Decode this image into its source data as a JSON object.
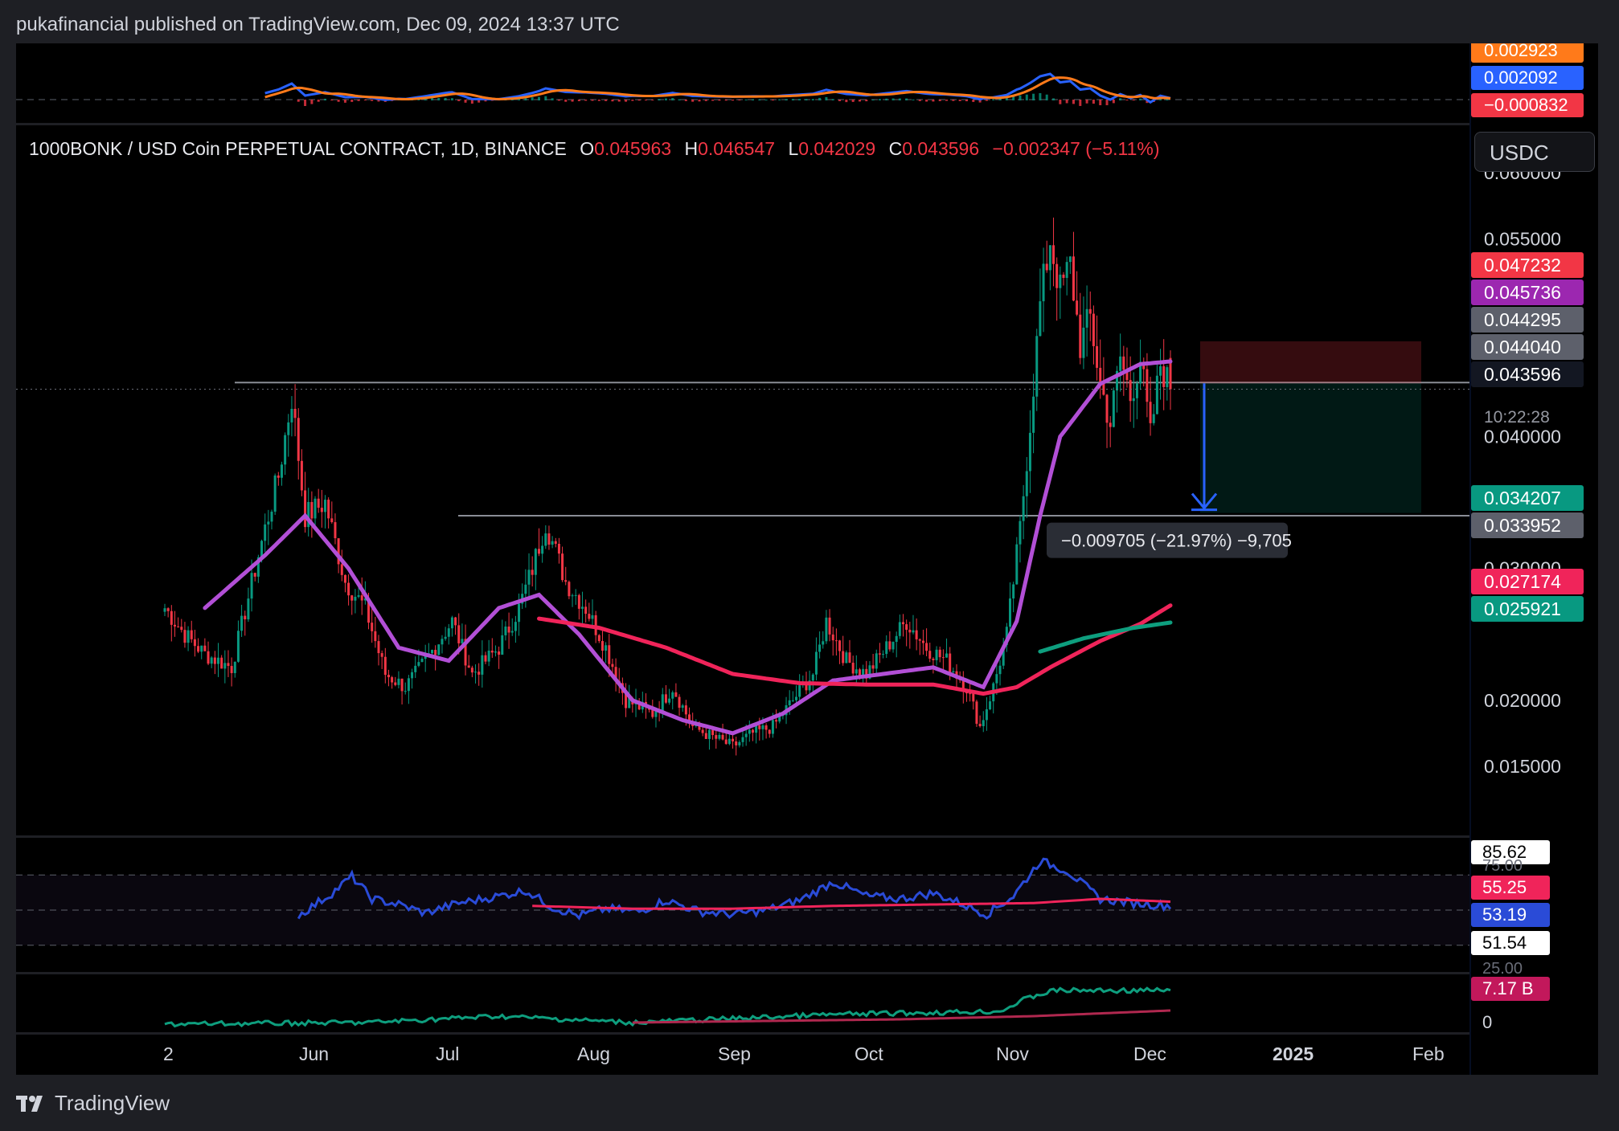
{
  "header": {
    "published": "pukafinancial published on TradingView.com, Dec 09, 2024 13:37 UTC"
  },
  "footer": {
    "brand": "TradingView"
  },
  "unit_selector": "USDC",
  "legend": {
    "symbol": "1000BONK / USD Coin PERPETUAL CONTRACT, 1D, BINANCE",
    "o_label": "O",
    "o": "0.045963",
    "h_label": "H",
    "h": "0.046547",
    "l_label": "L",
    "l": "0.042029",
    "c_label": "C",
    "c": "0.043596",
    "change": "−0.002347 (−5.11%)"
  },
  "measure_label": "−0.009705 (−21.97%) −9,705",
  "countdown": "10:22:28",
  "colors": {
    "up": "#089981",
    "down": "#f23645",
    "ma_purple": "#b24fd6",
    "ma_red": "#f0245a",
    "ma_green": "#0e9e7e",
    "macd_blue": "#2962ff",
    "signal_orange": "#ff7a1a",
    "rsi_blue": "#2a4bd7"
  },
  "chart_data": [
    {
      "type": "line",
      "title": "MACD",
      "series_values": {
        "signal": "0.002923",
        "macd": "0.002092",
        "histogram": "−0.000832"
      }
    },
    {
      "type": "candlestick",
      "title": "1000BONK / USD Coin PERPETUAL CONTRACT, 1D, BINANCE",
      "x_ticks": [
        "2",
        "Jun",
        "Jul",
        "Aug",
        "Sep",
        "Oct",
        "Nov",
        "Dec",
        "2025",
        "Feb"
      ],
      "y_ticks": [
        "0.060000",
        "0.055000",
        "0.040000",
        "0.030000",
        "0.020000",
        "0.015000"
      ],
      "ylim": [
        0.01,
        0.063
      ],
      "price_labels": [
        {
          "value": "0.047232",
          "color": "#f23645"
        },
        {
          "value": "0.045736",
          "color": "#9c27b0"
        },
        {
          "value": "0.044295",
          "color": "#5d606b"
        },
        {
          "value": "0.044040",
          "color": "#5d606b"
        },
        {
          "value": "0.043596",
          "color": "#131722"
        },
        {
          "value": "0.034207",
          "color": "#089981"
        },
        {
          "value": "0.033952",
          "color": "#5d606b"
        },
        {
          "value": "0.027174",
          "color": "#f0245a"
        },
        {
          "value": "0.025921",
          "color": "#089981"
        }
      ],
      "horizontal_levels": [
        0.0441,
        0.034
      ],
      "short_position": {
        "entry": 0.04404,
        "stop": 0.04723,
        "target": 0.03421
      },
      "ohlc_last": {
        "open": 0.045963,
        "high": 0.046547,
        "low": 0.042029,
        "close": 0.043596
      },
      "close_anchors": [
        [
          0,
          0.027
        ],
        [
          6,
          0.025
        ],
        [
          12,
          0.0235
        ],
        [
          20,
          0.0225
        ],
        [
          28,
          0.031
        ],
        [
          34,
          0.037
        ],
        [
          38,
          0.043
        ],
        [
          42,
          0.034
        ],
        [
          48,
          0.035
        ],
        [
          54,
          0.029
        ],
        [
          60,
          0.027
        ],
        [
          66,
          0.022
        ],
        [
          72,
          0.021
        ],
        [
          78,
          0.023
        ],
        [
          86,
          0.026
        ],
        [
          92,
          0.022
        ],
        [
          100,
          0.024
        ],
        [
          106,
          0.027
        ],
        [
          110,
          0.03
        ],
        [
          114,
          0.0335
        ],
        [
          120,
          0.029
        ],
        [
          126,
          0.027
        ],
        [
          132,
          0.024
        ],
        [
          138,
          0.02
        ],
        [
          146,
          0.019
        ],
        [
          152,
          0.021
        ],
        [
          158,
          0.018
        ],
        [
          164,
          0.0172
        ],
        [
          170,
          0.0165
        ],
        [
          176,
          0.0175
        ],
        [
          182,
          0.018
        ],
        [
          188,
          0.02
        ],
        [
          194,
          0.022
        ],
        [
          198,
          0.026
        ],
        [
          204,
          0.023
        ],
        [
          210,
          0.022
        ],
        [
          216,
          0.024
        ],
        [
          222,
          0.026
        ],
        [
          228,
          0.024
        ],
        [
          234,
          0.023
        ],
        [
          240,
          0.021
        ],
        [
          244,
          0.018
        ],
        [
          248,
          0.021
        ],
        [
          252,
          0.025
        ],
        [
          256,
          0.033
        ],
        [
          259,
          0.041
        ],
        [
          262,
          0.05
        ],
        [
          265,
          0.055
        ],
        [
          268,
          0.051
        ],
        [
          271,
          0.053
        ],
        [
          274,
          0.047
        ],
        [
          277,
          0.049
        ],
        [
          280,
          0.044
        ],
        [
          283,
          0.041
        ],
        [
          286,
          0.046
        ],
        [
          289,
          0.043
        ],
        [
          292,
          0.046
        ],
        [
          295,
          0.04
        ],
        [
          298,
          0.0455
        ],
        [
          301,
          0.0436
        ]
      ],
      "series": [
        {
          "values": [
            [
              12,
              0.027
            ],
            [
              30,
              0.031
            ],
            [
              42,
              0.034
            ],
            [
              55,
              0.03
            ],
            [
              70,
              0.024
            ],
            [
              85,
              0.023
            ],
            [
              100,
              0.027
            ],
            [
              112,
              0.028
            ],
            [
              124,
              0.025
            ],
            [
              140,
              0.02
            ],
            [
              155,
              0.0185
            ],
            [
              170,
              0.0175
            ],
            [
              185,
              0.019
            ],
            [
              200,
              0.0215
            ],
            [
              215,
              0.022
            ],
            [
              230,
              0.0225
            ],
            [
              245,
              0.021
            ],
            [
              255,
              0.026
            ],
            [
              262,
              0.034
            ],
            [
              268,
              0.04
            ],
            [
              280,
              0.044
            ],
            [
              292,
              0.0455
            ],
            [
              301,
              0.0457
            ]
          ]
        },
        {
          "values": [
            [
              112,
              0.0262
            ],
            [
              130,
              0.0255
            ],
            [
              150,
              0.024
            ],
            [
              170,
              0.022
            ],
            [
              190,
              0.0213
            ],
            [
              210,
              0.0212
            ],
            [
              230,
              0.0212
            ],
            [
              245,
              0.0205
            ],
            [
              255,
              0.021
            ],
            [
              265,
              0.0225
            ],
            [
              280,
              0.0245
            ],
            [
              292,
              0.0258
            ],
            [
              301,
              0.0272
            ]
          ]
        },
        {
          "values": [
            [
              262,
              0.0237
            ],
            [
              275,
              0.0247
            ],
            [
              290,
              0.0255
            ],
            [
              301,
              0.0259
            ]
          ]
        }
      ]
    },
    {
      "type": "line",
      "title": "RSI",
      "y_ticks": [
        "75.00",
        "25.00"
      ],
      "series_values": [
        "85.62",
        "55.25",
        "53.19",
        "51.54"
      ],
      "rsi_anchors": [
        [
          40,
          46
        ],
        [
          50,
          62
        ],
        [
          56,
          74
        ],
        [
          62,
          58
        ],
        [
          70,
          54
        ],
        [
          78,
          48
        ],
        [
          88,
          55
        ],
        [
          100,
          60
        ],
        [
          108,
          64
        ],
        [
          116,
          52
        ],
        [
          124,
          46
        ],
        [
          132,
          51
        ],
        [
          142,
          49
        ],
        [
          150,
          57
        ],
        [
          160,
          49
        ],
        [
          170,
          47
        ],
        [
          180,
          50
        ],
        [
          190,
          57
        ],
        [
          200,
          70
        ],
        [
          210,
          60
        ],
        [
          220,
          58
        ],
        [
          230,
          62
        ],
        [
          238,
          55
        ],
        [
          246,
          47
        ],
        [
          254,
          60
        ],
        [
          262,
          85
        ],
        [
          270,
          78
        ],
        [
          280,
          58
        ],
        [
          290,
          55
        ],
        [
          301,
          53
        ]
      ],
      "ma_anchors": [
        [
          110,
          53
        ],
        [
          140,
          51
        ],
        [
          170,
          51
        ],
        [
          200,
          53
        ],
        [
          230,
          54
        ],
        [
          260,
          55
        ],
        [
          280,
          58
        ],
        [
          301,
          56
        ]
      ]
    },
    {
      "type": "area",
      "title": "Volume",
      "series_values": [
        "7.17 B",
        "0"
      ]
    }
  ]
}
